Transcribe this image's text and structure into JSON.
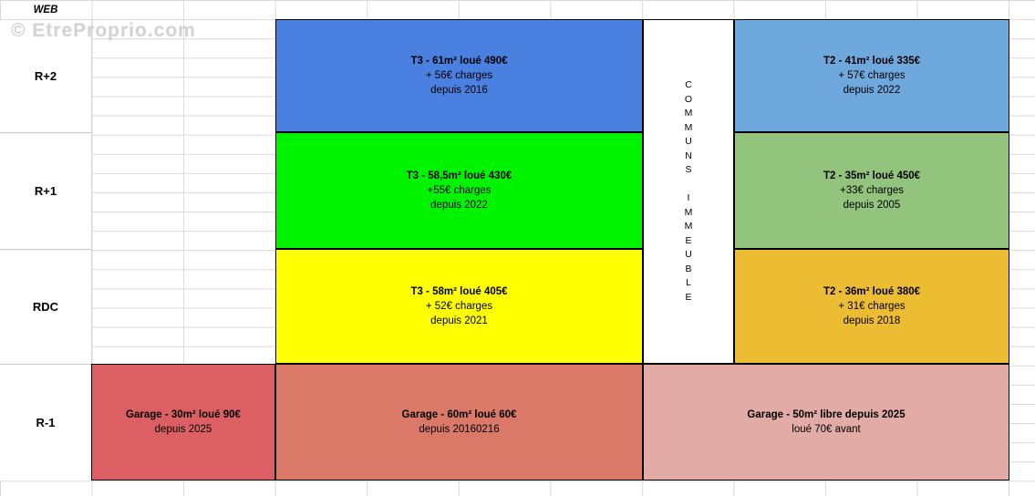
{
  "header": {
    "corner_label": "WEB"
  },
  "watermark": {
    "text": "© EtreProprio.com"
  },
  "floors": [
    {
      "label": "R+2"
    },
    {
      "label": "R+1"
    },
    {
      "label": "RDC"
    },
    {
      "label": "R-1"
    }
  ],
  "commons_column": {
    "letters": [
      "C",
      "O",
      "M",
      "M",
      "U",
      "N",
      "S",
      "",
      "I",
      "M",
      "M",
      "E",
      "U",
      "B",
      "L",
      "E"
    ]
  },
  "units": [
    {
      "line1": "T3 - 61m² loué 490€",
      "line2": "+ 56€ charges",
      "line3": "depuis 2016",
      "color": "#4a80e0"
    },
    {
      "line1": "T3 - 58,5m² loué 430€",
      "line2": "+55€ charges",
      "line3": "depuis 2022",
      "color": "#00f400"
    },
    {
      "line1": "T3 - 58m² loué 405€",
      "line2": "+ 52€ charges",
      "line3": "depuis 2021",
      "color": "#ffff00"
    },
    {
      "line1": "T2 - 41m² loué 335€",
      "line2": "+ 57€ charges",
      "line3": "depuis 2022",
      "color": "#6fa8dc"
    },
    {
      "line1": "T2 - 35m² loué 450€",
      "line2": "+33€ charges",
      "line3": "depuis 2005",
      "color": "#93c47d"
    },
    {
      "line1": "T2 - 36m² loué 380€",
      "line2": "+ 31€ charges",
      "line3": "depuis 2018",
      "color": "#ecbc33"
    }
  ],
  "garages": [
    {
      "line1": "Garage - 30m² loué 90€",
      "line2": "depuis 2025",
      "color": "#dc6063"
    },
    {
      "line1": "Garage - 60m² loué 60€",
      "line2": "depuis 20160216",
      "color": "#db7968"
    },
    {
      "line1": "Garage - 50m² libre depuis 2025",
      "line2": "loué 70€ avant",
      "color": "#e2aba5"
    }
  ]
}
